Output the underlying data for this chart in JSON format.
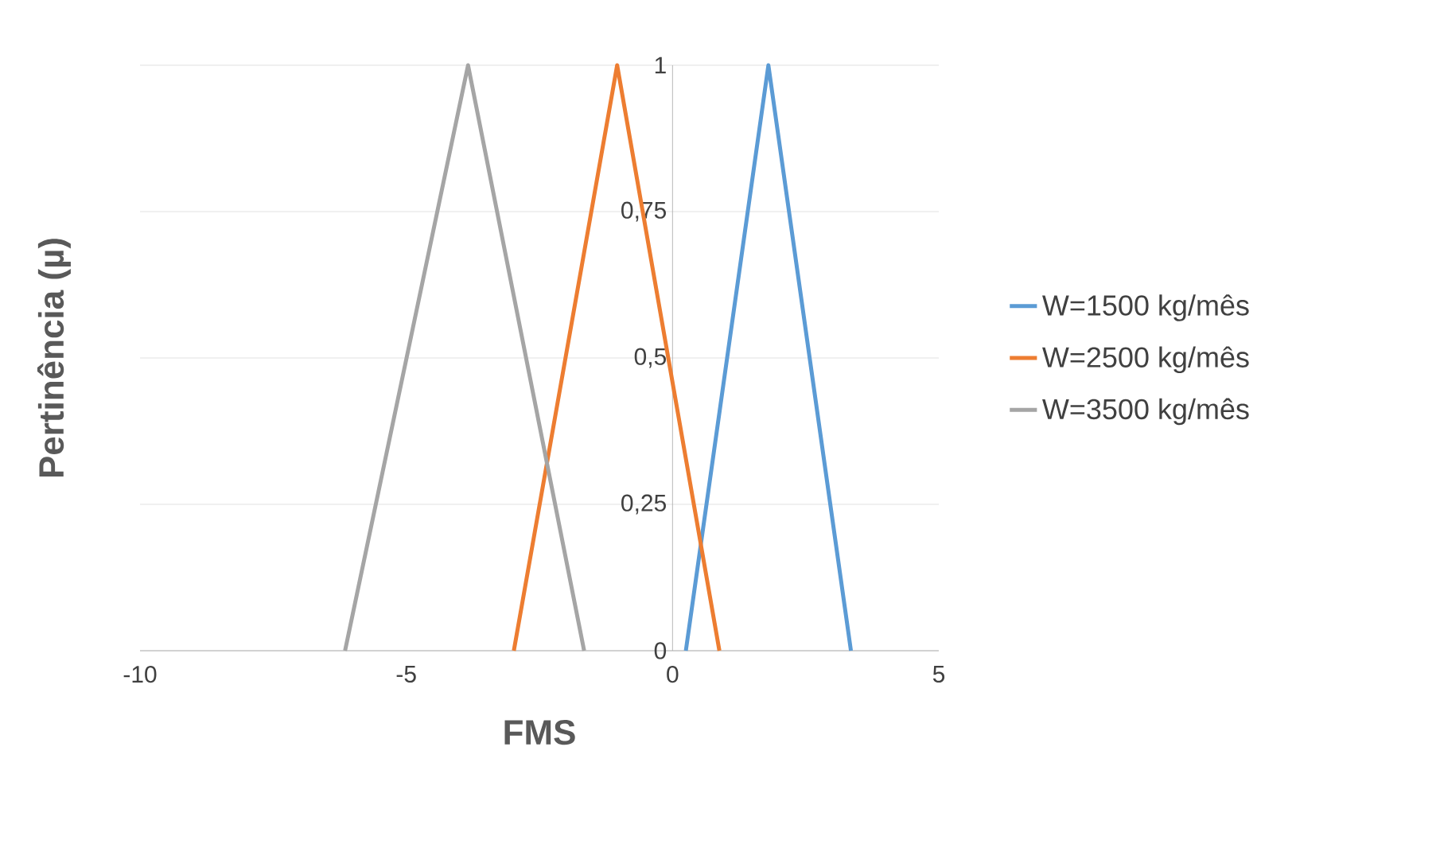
{
  "chart_data": {
    "type": "line",
    "xlabel": "FMS",
    "ylabel": "Pertinência (µ)",
    "xlim": [
      -10,
      5
    ],
    "xticks": [
      -10,
      -5,
      0,
      5
    ],
    "ylim": [
      0,
      1
    ],
    "yticks": [
      0,
      {
        "value": 0.25,
        "label": "0,25"
      },
      {
        "value": 0.5,
        "label": "0,5"
      },
      {
        "value": 0.75,
        "label": "0,75"
      },
      1
    ],
    "grid": "y",
    "legend": "right",
    "marker": "none",
    "line_style": "solid",
    "series": [
      {
        "name": "W=1500 kg/mês",
        "color": "#5b9bd5",
        "x": [
          0.25,
          1.8,
          3.35
        ],
        "values": [
          0,
          1,
          0
        ]
      },
      {
        "name": "W=2500 kg/mês",
        "color": "#ed7d31",
        "x": [
          -2.98,
          -1.04,
          0.88
        ],
        "values": [
          0,
          1,
          0
        ]
      },
      {
        "name": "W=3500 kg/mês",
        "color": "#a5a5a5",
        "x": [
          -6.15,
          -3.84,
          -1.66
        ],
        "values": [
          0,
          1,
          0
        ]
      }
    ]
  }
}
